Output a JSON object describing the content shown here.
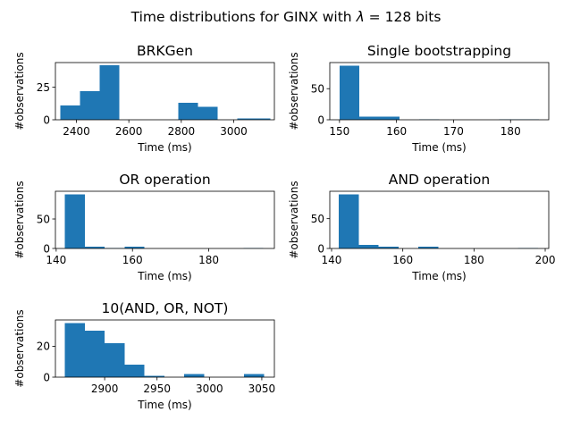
{
  "figure": {
    "suptitle_prefix": "Time distributions for GINX with ",
    "suptitle_lambda": "λ",
    "suptitle_suffix": " = 128 bits"
  },
  "chart_data": [
    {
      "type": "bar",
      "title": "BRKGen",
      "xlabel": "Time (ms)",
      "ylabel": "#observations",
      "xlim": [
        2320,
        3155
      ],
      "ylim": [
        0,
        44
      ],
      "xticks": [
        2400,
        2600,
        2800,
        3000
      ],
      "yticks": [
        0,
        25
      ],
      "bin_edges": [
        2338,
        2413,
        2488,
        2563,
        2638,
        2713,
        2788,
        2863,
        2938,
        3013,
        3088,
        3140
      ],
      "counts": [
        11,
        22,
        42,
        0,
        0,
        0,
        13,
        10,
        0,
        1,
        1
      ],
      "color": "#1f77b4"
    },
    {
      "type": "bar",
      "title": "Single bootstrapping",
      "xlabel": "Time (ms)",
      "ylabel": "#observations",
      "xlim": [
        148.3,
        186.7
      ],
      "ylim": [
        0,
        92
      ],
      "xticks": [
        150,
        160,
        170,
        180
      ],
      "yticks": [
        0,
        50
      ],
      "bin_edges": [
        150,
        153.5,
        157,
        160.5,
        164,
        167.5,
        171,
        174.5,
        178,
        181.5,
        185
      ],
      "counts": [
        87,
        5,
        5,
        0,
        1,
        0,
        0,
        0,
        1,
        1
      ],
      "color": "#1f77b4"
    },
    {
      "type": "bar",
      "title": "OR operation",
      "xlabel": "Time (ms)",
      "ylabel": "#observations",
      "xlim": [
        139.8,
        197.2
      ],
      "ylim": [
        0,
        97
      ],
      "xticks": [
        140,
        160,
        180
      ],
      "yticks": [
        0,
        50
      ],
      "bin_edges": [
        142.3,
        147.5,
        152.7,
        157.9,
        163.1,
        168.3,
        173.5,
        178.7,
        183.9,
        189.1,
        194.3
      ],
      "counts": [
        92,
        3,
        1,
        3,
        0,
        0,
        0,
        0,
        0,
        1
      ],
      "color": "#1f77b4"
    },
    {
      "type": "bar",
      "title": "AND operation",
      "xlabel": "Time (ms)",
      "ylabel": "#observations",
      "xlim": [
        139.5,
        201
      ],
      "ylim": [
        0,
        96
      ],
      "xticks": [
        140,
        160,
        180,
        200
      ],
      "yticks": [
        0,
        50
      ],
      "bin_edges": [
        142,
        147.6,
        153.2,
        158.8,
        164.4,
        170,
        175.6,
        181.2,
        186.8,
        192.4,
        198
      ],
      "counts": [
        91,
        6,
        3,
        0,
        3,
        0,
        0,
        0,
        0,
        1
      ],
      "color": "#1f77b4"
    },
    {
      "type": "bar",
      "title": "10(AND, OR, NOT)",
      "xlabel": "Time (ms)",
      "ylabel": "#observations",
      "xlim": [
        2853,
        3062
      ],
      "ylim": [
        0,
        37
      ],
      "xticks": [
        2900,
        2950,
        3000,
        3050
      ],
      "yticks": [
        0,
        20
      ],
      "bin_edges": [
        2862,
        2881,
        2900,
        2919,
        2938,
        2957,
        2976,
        2995,
        3014,
        3033,
        3052
      ],
      "counts": [
        35,
        30,
        22,
        8,
        1,
        0,
        2,
        0,
        0,
        2
      ],
      "color": "#1f77b4"
    }
  ]
}
